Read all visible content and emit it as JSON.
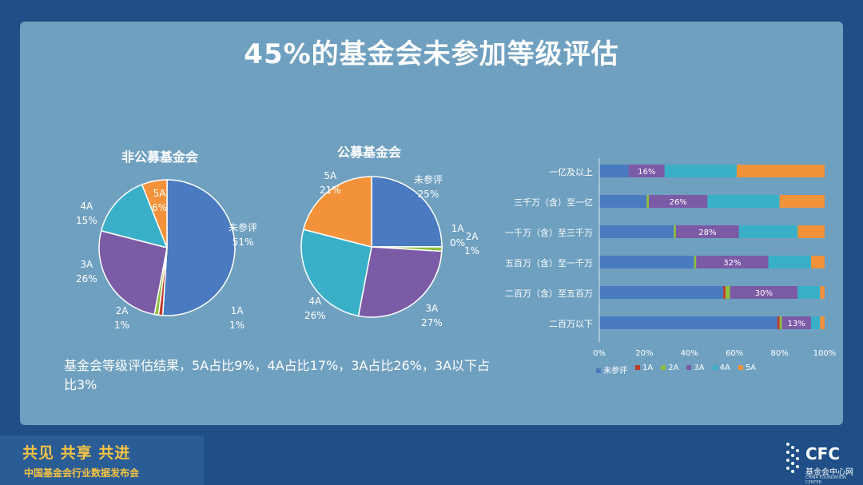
{
  "title": "45%的基金会未参加等级评估",
  "description": "基金会等级评估结果，5A占比9%，4A占比17%，3A占比26%，3A以下占比3%",
  "footer": {
    "slogan": "共见 共享 共进",
    "subtitle": "中国基金会行业数据发布会",
    "logo_text": "CFC",
    "logo_sub": "基金会中心网",
    "logo_mini": "CHINA FOUNDATION CENTER"
  },
  "colors": {
    "未参评": "#4a7ac0",
    "1A": "#c0392b",
    "2A": "#8fbf3f",
    "3A": "#7b5aa6",
    "4A": "#3ab0c8",
    "5A": "#f2923a"
  },
  "chart_data": [
    {
      "type": "pie",
      "title": "非公募基金会",
      "labels": [
        "未参评",
        "1A",
        "2A",
        "3A",
        "4A",
        "5A"
      ],
      "values": [
        51,
        1,
        1,
        26,
        15,
        6
      ],
      "value_labels": [
        "51%",
        "1%",
        "1%",
        "26%",
        "15%",
        "6%"
      ]
    },
    {
      "type": "pie",
      "title": "公募基金会",
      "labels": [
        "未参评",
        "1A",
        "2A",
        "3A",
        "4A",
        "5A"
      ],
      "values": [
        25,
        0,
        1,
        27,
        26,
        21
      ],
      "value_labels": [
        "25%",
        "0%",
        "1%",
        "27%",
        "26%",
        "21%"
      ]
    },
    {
      "type": "bar",
      "stacked": true,
      "orientation": "horizontal",
      "categories": [
        "一亿及以上",
        "三千万（含）至一亿",
        "一千万（含）至三千万",
        "五百万（含）至一千万",
        "二百万（含）至五百万",
        "二百万以下"
      ],
      "series": [
        {
          "name": "未参评",
          "values": [
            13,
            21,
            33,
            42,
            55,
            79
          ]
        },
        {
          "name": "1A",
          "values": [
            0,
            0,
            0,
            0,
            1,
            1
          ]
        },
        {
          "name": "2A",
          "values": [
            0,
            1,
            1,
            1,
            2,
            1
          ]
        },
        {
          "name": "3A",
          "values": [
            16,
            26,
            28,
            32,
            30,
            13
          ]
        },
        {
          "name": "4A",
          "values": [
            32,
            32,
            26,
            19,
            10,
            4
          ]
        },
        {
          "name": "5A",
          "values": [
            39,
            20,
            12,
            6,
            2,
            2
          ]
        }
      ],
      "bar_labels": [
        "16%",
        "26%",
        "28%",
        "32%",
        "30%",
        "13%"
      ],
      "x_ticks": [
        "0%",
        "20%",
        "40%",
        "60%",
        "80%",
        "100%"
      ],
      "xlim": [
        0,
        100
      ]
    }
  ]
}
